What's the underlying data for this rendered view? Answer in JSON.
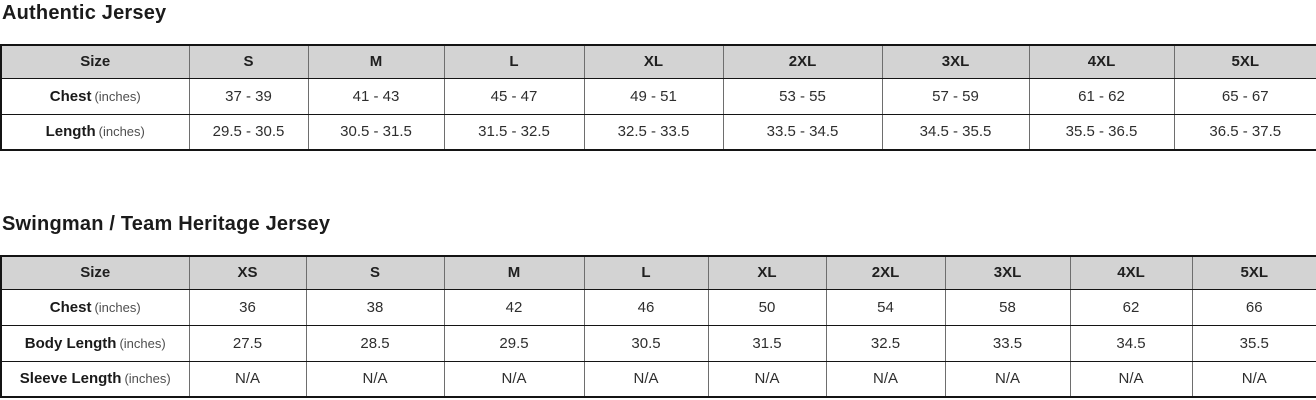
{
  "colors": {
    "header_bg": "#d3d3d3",
    "border_dark": "#141414",
    "border_light": "#6e6e6e",
    "heading_text": "#1b1b1b",
    "unit_text": "#4f4f4f",
    "value_text": "#2e2e2e",
    "page_bg": "#ffffff"
  },
  "sections": [
    {
      "title": "Authentic Jersey",
      "table": {
        "header": [
          "Size",
          "S",
          "M",
          "L",
          "XL",
          "2XL",
          "3XL",
          "4XL",
          "5XL"
        ],
        "rows": [
          {
            "label": "Chest",
            "unit": "(inches)",
            "values": [
              "37 - 39",
              "41 - 43",
              "45 - 47",
              "49 - 51",
              "53 - 55",
              "57 - 59",
              "61 - 62",
              "65 - 67"
            ]
          },
          {
            "label": "Length",
            "unit": "(inches)",
            "values": [
              "29.5 - 30.5",
              "30.5 - 31.5",
              "31.5 - 32.5",
              "32.5 - 33.5",
              "33.5 - 34.5",
              "34.5 - 35.5",
              "35.5 - 36.5",
              "36.5 - 37.5"
            ]
          }
        ]
      }
    },
    {
      "title": "Swingman / Team Heritage Jersey",
      "table": {
        "header": [
          "Size",
          "XS",
          "S",
          "M",
          "L",
          "XL",
          "2XL",
          "3XL",
          "4XL",
          "5XL"
        ],
        "rows": [
          {
            "label": "Chest",
            "unit": "(inches)",
            "values": [
              "36",
              "38",
              "42",
              "46",
              "50",
              "54",
              "58",
              "62",
              "66"
            ]
          },
          {
            "label": "Body Length",
            "unit": "(inches)",
            "values": [
              "27.5",
              "28.5",
              "29.5",
              "30.5",
              "31.5",
              "32.5",
              "33.5",
              "34.5",
              "35.5"
            ]
          },
          {
            "label": "Sleeve Length",
            "unit": "(inches)",
            "values": [
              "N/A",
              "N/A",
              "N/A",
              "N/A",
              "N/A",
              "N/A",
              "N/A",
              "N/A",
              "N/A"
            ]
          }
        ]
      }
    }
  ]
}
